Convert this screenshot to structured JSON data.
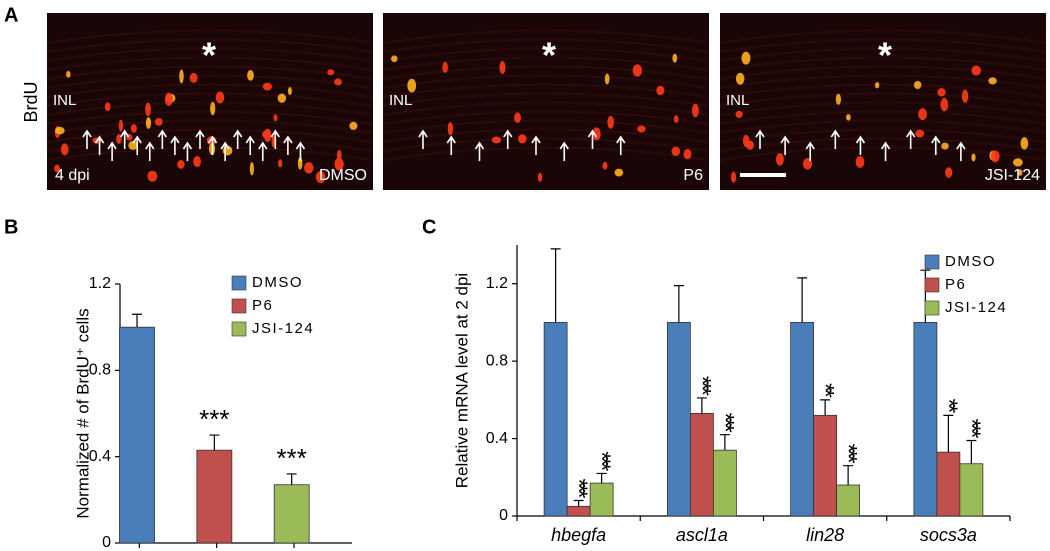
{
  "panel_labels": [
    "A",
    "B",
    "C"
  ],
  "micrographs": {
    "row_label": "BrdU",
    "panels": [
      {
        "layer": "INL",
        "timepoint": "4 dpi",
        "treatment": "DMSO",
        "marker": "*"
      },
      {
        "layer": "INL",
        "treatment": "P6",
        "marker": "*"
      },
      {
        "layer": "INL",
        "treatment": "JSI-124",
        "marker": "*"
      }
    ]
  },
  "chart_data": [
    {
      "type": "bar",
      "ylabel": "Normalized # of BrdU⁺ cells",
      "ylim": [
        0,
        1.2
      ],
      "yticks": [
        0,
        0.4,
        0.8,
        1.2
      ],
      "legend": "top-right",
      "series": [
        {
          "name": "DMSO",
          "color": "#4a7ebb",
          "values": [
            1.0
          ],
          "errors": [
            0.06
          ],
          "significance": [
            null
          ]
        },
        {
          "name": "P6",
          "color": "#c0504d",
          "values": [
            0.43
          ],
          "errors": [
            0.07
          ],
          "significance": [
            "***"
          ]
        },
        {
          "name": "JSI-124",
          "color": "#9bbb59",
          "values": [
            0.27
          ],
          "errors": [
            0.05
          ],
          "significance": [
            "***"
          ]
        }
      ]
    },
    {
      "type": "bar",
      "ylabel": "Relative mRNA level at 2 dpi",
      "categories": [
        "hbegfa",
        "ascl1a",
        "lin28",
        "socs3a"
      ],
      "ylim": [
        0,
        1.4
      ],
      "yticks": [
        0,
        0.4,
        0.8,
        1.2
      ],
      "legend": "top-right",
      "series": [
        {
          "name": "DMSO",
          "color": "#4a7ebb",
          "values": [
            1.0,
            1.0,
            1.0,
            1.0
          ],
          "errors": [
            0.38,
            0.19,
            0.23,
            0.27
          ],
          "significance": [
            null,
            null,
            null,
            null
          ]
        },
        {
          "name": "P6",
          "color": "#c0504d",
          "values": [
            0.05,
            0.53,
            0.52,
            0.33
          ],
          "errors": [
            0.03,
            0.08,
            0.08,
            0.19
          ],
          "significance": [
            "***",
            "***",
            "**",
            "**"
          ]
        },
        {
          "name": "JSI-124",
          "color": "#9bbb59",
          "values": [
            0.17,
            0.34,
            0.16,
            0.27
          ],
          "errors": [
            0.05,
            0.08,
            0.1,
            0.12
          ],
          "significance": [
            "***",
            "***",
            "***",
            "***"
          ]
        }
      ]
    }
  ]
}
